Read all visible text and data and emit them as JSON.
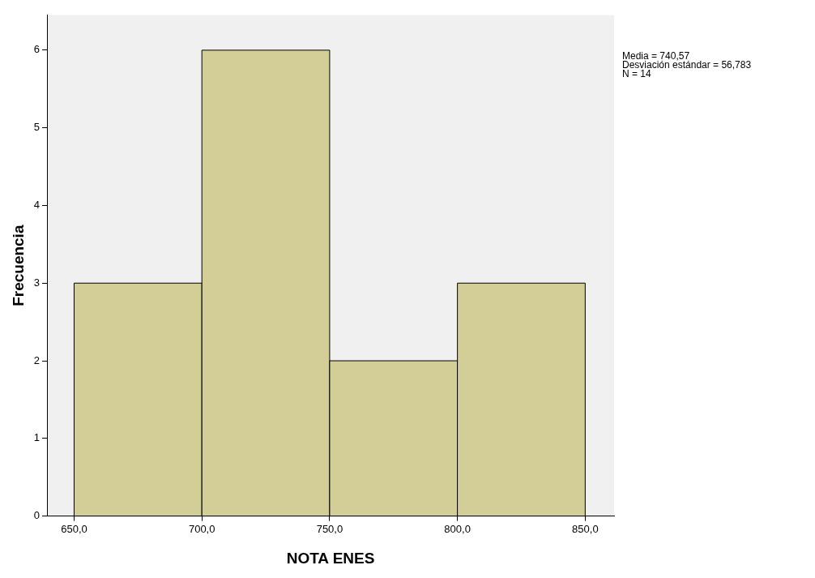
{
  "chart_data": {
    "type": "histogram",
    "xlabel": "NOTA ENES",
    "ylabel": "Frecuencia",
    "bins": [
      650,
      700,
      750,
      800,
      850
    ],
    "values": [
      3,
      6,
      2,
      3
    ],
    "color": "#d3ce97",
    "xlim": [
      639.4,
      861.3
    ],
    "xticks": [
      {
        "value": 650,
        "label": "650,0"
      },
      {
        "value": 700,
        "label": "700,0"
      },
      {
        "value": 750,
        "label": "750,0"
      },
      {
        "value": 800,
        "label": "800,0"
      },
      {
        "value": 850,
        "label": "850,0"
      }
    ],
    "ylim": [
      0,
      6.45
    ],
    "yticks": [
      0,
      1,
      2,
      3,
      4,
      5,
      6
    ],
    "grid": false,
    "legend": false,
    "annotations": [
      "Media = 740,57",
      "Desviación estándar = 56,783",
      "N = 14"
    ]
  }
}
